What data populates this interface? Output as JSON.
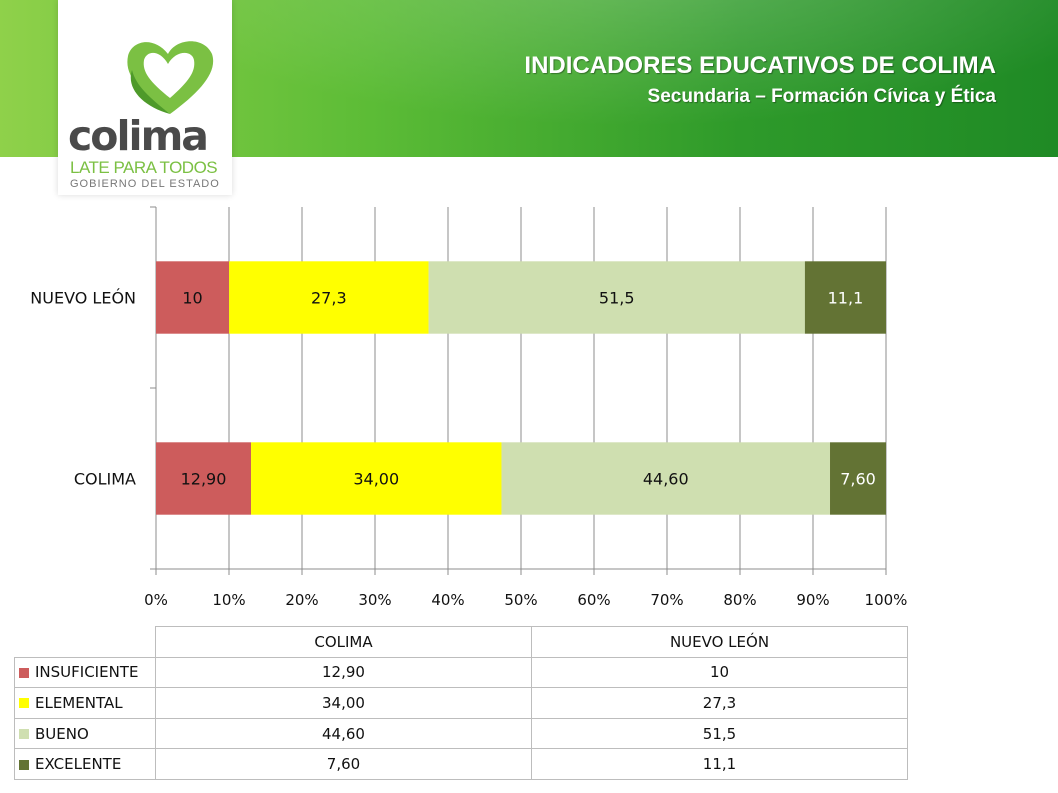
{
  "header": {
    "title": "INDICADORES EDUCATIVOS DE COLIMA",
    "subtitle": "Secundaria – Formación Cívica y Ética"
  },
  "logo": {
    "word": "colima",
    "tagline": "LATE PARA TODOS",
    "sub": "GOBIERNO DEL ESTADO",
    "icon": "heart-icon"
  },
  "chart_data": {
    "type": "bar",
    "orientation": "horizontal",
    "stacked": "percent",
    "categories": [
      "NUEVO LEÓN",
      "COLIMA"
    ],
    "series": [
      {
        "name": "INSUFICIENTE",
        "color": "#cd5c5c",
        "values": [
          10,
          12.9
        ],
        "labels": [
          "10",
          "12,90"
        ]
      },
      {
        "name": "ELEMENTAL",
        "color": "#ffff00",
        "values": [
          27.3,
          34.0
        ],
        "labels": [
          "27,3",
          "34,00"
        ]
      },
      {
        "name": "BUENO",
        "color": "#cfdfb0",
        "values": [
          51.5,
          44.6
        ],
        "labels": [
          "51,5",
          "44,60"
        ]
      },
      {
        "name": "EXCELENTE",
        "color": "#637334",
        "values": [
          11.1,
          7.6
        ],
        "labels": [
          "11,1",
          "7,60"
        ]
      }
    ],
    "xticks": [
      "0%",
      "10%",
      "20%",
      "30%",
      "40%",
      "50%",
      "60%",
      "70%",
      "80%",
      "90%",
      "100%"
    ],
    "xlim": [
      0,
      100
    ],
    "grid": true,
    "legend": "data-table-below"
  },
  "table": {
    "headers": [
      "COLIMA",
      "NUEVO LEÓN"
    ],
    "rows": [
      {
        "label": "INSUFICIENTE",
        "color": "#cd5c5c",
        "values": [
          "12,90",
          "10"
        ]
      },
      {
        "label": "ELEMENTAL",
        "color": "#ffff00",
        "values": [
          "34,00",
          "27,3"
        ]
      },
      {
        "label": "BUENO",
        "color": "#cfdfb0",
        "values": [
          "44,60",
          "51,5"
        ]
      },
      {
        "label": "EXCELENTE",
        "color": "#637334",
        "values": [
          "7,60",
          "11,1"
        ]
      }
    ]
  }
}
